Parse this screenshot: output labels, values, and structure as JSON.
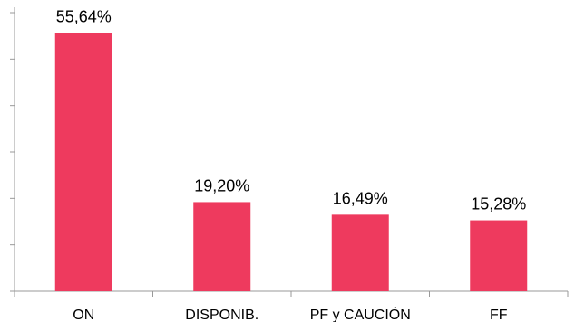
{
  "chart_data": {
    "type": "bar",
    "categories": [
      "ON",
      "DISPONIB.",
      "PF y CAUCIÓN",
      "FF"
    ],
    "values": [
      55.64,
      19.2,
      16.49,
      15.28
    ],
    "data_labels": [
      "55,64%",
      "19,20%",
      "16,49%",
      "15,28%"
    ],
    "title": "",
    "xlabel": "",
    "ylabel": "",
    "ylim": [
      0,
      60
    ],
    "y_ticks": 6,
    "y_tick_labels_shown": false,
    "grid": false,
    "bar_color": "#EE3A5E",
    "axis_color": "#999999"
  }
}
